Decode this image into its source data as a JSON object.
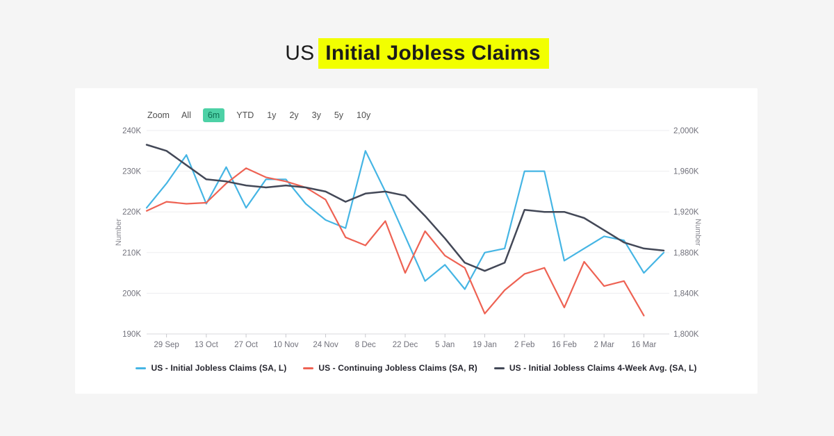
{
  "page": {
    "title_prefix": "US",
    "title_highlight": "Initial Jobless Claims",
    "highlight_bg": "#F2FF00",
    "title_color": "#1B1B1B",
    "background": "#F5F5F5",
    "card_bg": "#FFFFFF"
  },
  "toolbar": {
    "zoom_label": "Zoom",
    "ranges": [
      "All",
      "6m",
      "YTD",
      "1y",
      "2y",
      "3y",
      "5y",
      "10y"
    ],
    "selected": "6m",
    "selected_bg": "#4DD1A6",
    "selected_text": "#0C6F52"
  },
  "chart_data": {
    "type": "line",
    "categories": [
      "22 Sep",
      "29 Sep",
      "6 Oct",
      "13 Oct",
      "20 Oct",
      "27 Oct",
      "3 Nov",
      "10 Nov",
      "17 Nov",
      "24 Nov",
      "1 Dec",
      "8 Dec",
      "15 Dec",
      "22 Dec",
      "29 Dec",
      "5 Jan",
      "12 Jan",
      "19 Jan",
      "26 Jan",
      "2 Feb",
      "9 Feb",
      "16 Feb",
      "23 Feb",
      "2 Mar",
      "9 Mar",
      "16 Mar",
      "23 Mar"
    ],
    "x_tick_indices": [
      1,
      3,
      5,
      7,
      9,
      11,
      13,
      15,
      17,
      19,
      21,
      23,
      25
    ],
    "x_tick_labels": [
      "29 Sep",
      "13 Oct",
      "27 Oct",
      "10 Nov",
      "24 Nov",
      "8 Dec",
      "22 Dec",
      "5 Jan",
      "19 Jan",
      "2 Feb",
      "16 Feb",
      "2 Mar",
      "16 Mar"
    ],
    "grid": true,
    "legend_position": "bottom",
    "left_axis": {
      "title": "Number",
      "min": 190,
      "max": 240,
      "ticks": [
        {
          "label": "240K",
          "value": 240
        },
        {
          "label": "230K",
          "value": 230
        },
        {
          "label": "220K",
          "value": 220
        },
        {
          "label": "210K",
          "value": 210
        },
        {
          "label": "200K",
          "value": 200
        },
        {
          "label": "190K",
          "value": 190
        }
      ]
    },
    "right_axis": {
      "title": "Number",
      "min": 1800,
      "max": 2000,
      "ticks": [
        {
          "label": "2,000K",
          "value": 2000
        },
        {
          "label": "1,960K",
          "value": 1960
        },
        {
          "label": "1,920K",
          "value": 1920
        },
        {
          "label": "1,880K",
          "value": 1880
        },
        {
          "label": "1,840K",
          "value": 1840
        },
        {
          "label": "1,800K",
          "value": 1800
        }
      ]
    },
    "series": [
      {
        "name": "US - Initial Jobless Claims (SA, L)",
        "axis": "left",
        "color": "#45B5E4",
        "stroke_width": 2.2,
        "values": [
          221,
          227,
          234,
          222,
          231,
          221,
          228,
          228,
          222,
          218,
          216,
          235,
          225,
          214,
          203,
          207,
          201,
          210,
          211,
          230,
          230,
          208,
          211,
          214,
          213,
          205,
          210
        ]
      },
      {
        "name": "US - Continuing Jobless Claims (SA, R)",
        "axis": "right",
        "color": "#EE6253",
        "stroke_width": 2.2,
        "values": [
          1921,
          1930,
          1928,
          1929,
          1948,
          1963,
          1954,
          1950,
          1944,
          1932,
          1895,
          1887,
          1911,
          1860,
          1901,
          1877,
          1865,
          1820,
          1843,
          1859,
          1865,
          1826,
          1871,
          1847,
          1852,
          1818
        ]
      },
      {
        "name": "US - Initial Jobless Claims 4-Week Avg. (SA, L)",
        "axis": "left",
        "color": "#434857",
        "stroke_width": 2.5,
        "values": [
          236.5,
          235,
          231.5,
          228,
          227.5,
          226.5,
          226,
          226.5,
          226,
          225,
          222.5,
          224.5,
          225,
          224,
          219,
          213.5,
          207.5,
          205.5,
          207.5,
          220.5,
          220,
          220,
          218.5,
          215.5,
          212.5,
          211,
          210.5
        ]
      }
    ],
    "style": {
      "grid_color": "#EDEDEF",
      "axis_line_color": "#D9D9DE",
      "tick_color": "#C8C8CD",
      "axis_label_color": "#71717B",
      "axis_title_color": "#8A8A92"
    }
  }
}
